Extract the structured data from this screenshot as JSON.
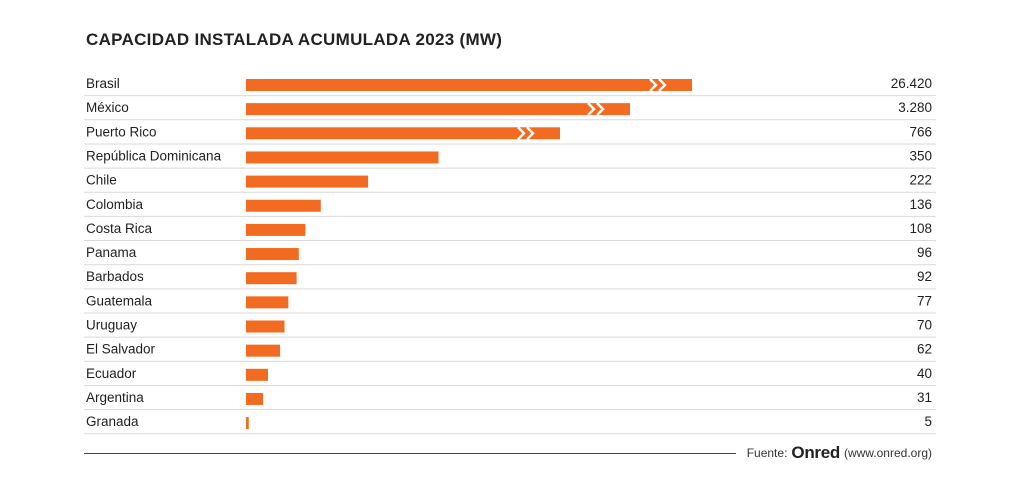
{
  "chart_data": {
    "type": "bar",
    "orientation": "horizontal",
    "title": "CAPACIDAD INSTALADA ACUMULADA 2023 (MW)",
    "categories": [
      "Brasil",
      "México",
      "Puerto Rico",
      "República Dominicana",
      "Chile",
      "Colombia",
      "Costa Rica",
      "Panama",
      "Barbados",
      "Guatemala",
      "Uruguay",
      "El Salvador",
      "Ecuador",
      "Argentina",
      "Granada"
    ],
    "values": [
      26420,
      3280,
      766,
      350,
      222,
      136,
      108,
      96,
      92,
      77,
      70,
      62,
      40,
      31,
      5
    ],
    "value_labels": [
      "26.420",
      "3.280",
      "766",
      "350",
      "222",
      "136",
      "108",
      "96",
      "92",
      "77",
      "70",
      "62",
      "40",
      "31",
      "5"
    ],
    "axis_break": [
      "Brasil",
      "México",
      "Puerto Rico"
    ],
    "xlim": [
      0,
      800
    ],
    "bar_color": "#f26b21",
    "separator_color": "#d9d9d9",
    "legend": "none",
    "grid": false
  },
  "footer": {
    "source_label": "Fuente:",
    "logo_text": "Onred",
    "url": "(www.onred.org)"
  }
}
